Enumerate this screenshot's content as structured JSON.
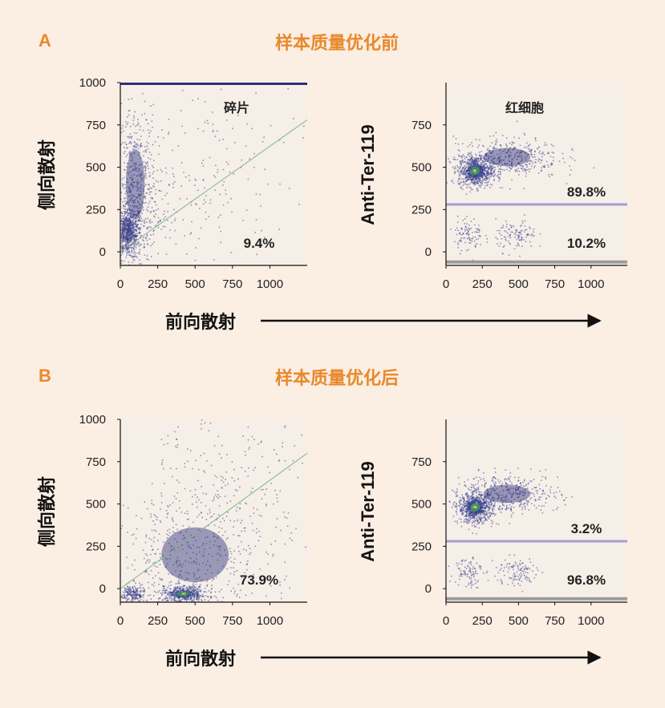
{
  "colors": {
    "background": "#fbeee3",
    "accent": "#e8892b",
    "text": "#222222",
    "plot_bg": "#f6efe8",
    "dot": "#3b3f8f",
    "gate_line": "#a79ccf"
  },
  "x_axis_label": "前向散射",
  "panels": [
    {
      "letter": "A",
      "title": "样本质量优化前",
      "plots": [
        {
          "ylabel": "侧向散射",
          "annotation": "碎片",
          "gate_pct": "9.4%",
          "x_ticks": [
            "0",
            "250",
            "500",
            "750",
            "1000"
          ],
          "y_ticks": [
            "0",
            "250",
            "500",
            "750",
            "1000"
          ]
        },
        {
          "ylabel": "Anti-Ter-119",
          "annotation": "红细胞",
          "upper_pct": "89.8%",
          "lower_pct": "10.2%",
          "x_ticks": [
            "0",
            "250",
            "500",
            "750",
            "1000"
          ],
          "y_ticks": [
            "0",
            "250",
            "500",
            "750"
          ]
        }
      ]
    },
    {
      "letter": "B",
      "title": "样本质量优化后",
      "plots": [
        {
          "ylabel": "侧向散射",
          "gate_pct": "73.9%",
          "x_ticks": [
            "0",
            "250",
            "500",
            "750",
            "1000"
          ],
          "y_ticks": [
            "0",
            "250",
            "500",
            "750",
            "1000"
          ]
        },
        {
          "ylabel": "Anti-Ter-119",
          "upper_pct": "3.2%",
          "lower_pct": "96.8%",
          "x_ticks": [
            "0",
            "250",
            "500",
            "750",
            "1000"
          ],
          "y_ticks": [
            "0",
            "250",
            "500",
            "750"
          ]
        }
      ]
    }
  ],
  "chart_data": [
    {
      "type": "scatter",
      "panel": "A",
      "xlabel": "前向散射",
      "ylabel": "侧向散射",
      "xlim": [
        0,
        1250
      ],
      "ylim": [
        -80,
        1000
      ],
      "annotations": [
        "碎片",
        "9.4%"
      ],
      "gate_fraction_percent": 9.4,
      "diagonal_line": [
        [
          0,
          0
        ],
        [
          1250,
          780
        ]
      ],
      "density": [
        {
          "x": 50,
          "y": 120,
          "sd_x": 45,
          "sd_y": 80,
          "weight": 0.45
        },
        {
          "x": 100,
          "y": 400,
          "sd_x": 70,
          "sd_y": 230,
          "weight": 0.35
        },
        {
          "x": 300,
          "y": 250,
          "sd_x": 220,
          "sd_y": 180,
          "weight": 0.12
        },
        {
          "x": 650,
          "y": 500,
          "sd_x": 300,
          "sd_y": 300,
          "weight": 0.08
        }
      ],
      "saturated_top_band": true
    },
    {
      "type": "scatter",
      "panel": "A",
      "xlabel": "前向散射",
      "ylabel": "Anti-Ter-119",
      "xlim": [
        0,
        1250
      ],
      "ylim": [
        -80,
        1000
      ],
      "gate_line_y": 280,
      "baseline_y": -60,
      "annotations": [
        "红细胞",
        "89.8%",
        "10.2%"
      ],
      "gates": [
        {
          "name": "upper",
          "percent": 89.8
        },
        {
          "name": "lower",
          "percent": 10.2
        }
      ],
      "density": [
        {
          "x": 200,
          "y": 480,
          "sd_x": 60,
          "sd_y": 45,
          "weight": 0.55
        },
        {
          "x": 420,
          "y": 560,
          "sd_x": 180,
          "sd_y": 60,
          "weight": 0.3
        },
        {
          "x": 150,
          "y": 110,
          "sd_x": 50,
          "sd_y": 50,
          "weight": 0.07
        },
        {
          "x": 480,
          "y": 100,
          "sd_x": 70,
          "sd_y": 45,
          "weight": 0.08
        }
      ]
    },
    {
      "type": "scatter",
      "panel": "B",
      "xlabel": "前向散射",
      "ylabel": "侧向散射",
      "xlim": [
        0,
        1250
      ],
      "ylim": [
        -80,
        1000
      ],
      "annotations": [
        "73.9%"
      ],
      "gate_fraction_percent": 73.9,
      "diagonal_line": [
        [
          0,
          0
        ],
        [
          1250,
          800
        ]
      ],
      "density": [
        {
          "x": 420,
          "y": -30,
          "sd_x": 80,
          "sd_y": 25,
          "weight": 0.35
        },
        {
          "x": 80,
          "y": -30,
          "sd_x": 40,
          "sd_y": 30,
          "weight": 0.15
        },
        {
          "x": 500,
          "y": 200,
          "sd_x": 250,
          "sd_y": 180,
          "weight": 0.3
        },
        {
          "x": 650,
          "y": 550,
          "sd_x": 350,
          "sd_y": 300,
          "weight": 0.2
        }
      ]
    },
    {
      "type": "scatter",
      "panel": "B",
      "xlabel": "前向散射",
      "ylabel": "Anti-Ter-119",
      "xlim": [
        0,
        1250
      ],
      "ylim": [
        -80,
        1000
      ],
      "gate_line_y": 280,
      "baseline_y": -60,
      "annotations": [
        "3.2%",
        "96.8%"
      ],
      "gates": [
        {
          "name": "upper",
          "percent": 3.2
        },
        {
          "name": "lower",
          "percent": 96.8
        }
      ],
      "density": [
        {
          "x": 200,
          "y": 480,
          "sd_x": 60,
          "sd_y": 45,
          "weight": 0.55
        },
        {
          "x": 420,
          "y": 560,
          "sd_x": 180,
          "sd_y": 60,
          "weight": 0.3
        },
        {
          "x": 150,
          "y": 110,
          "sd_x": 50,
          "sd_y": 50,
          "weight": 0.07
        },
        {
          "x": 480,
          "y": 100,
          "sd_x": 70,
          "sd_y": 45,
          "weight": 0.08
        }
      ]
    }
  ]
}
